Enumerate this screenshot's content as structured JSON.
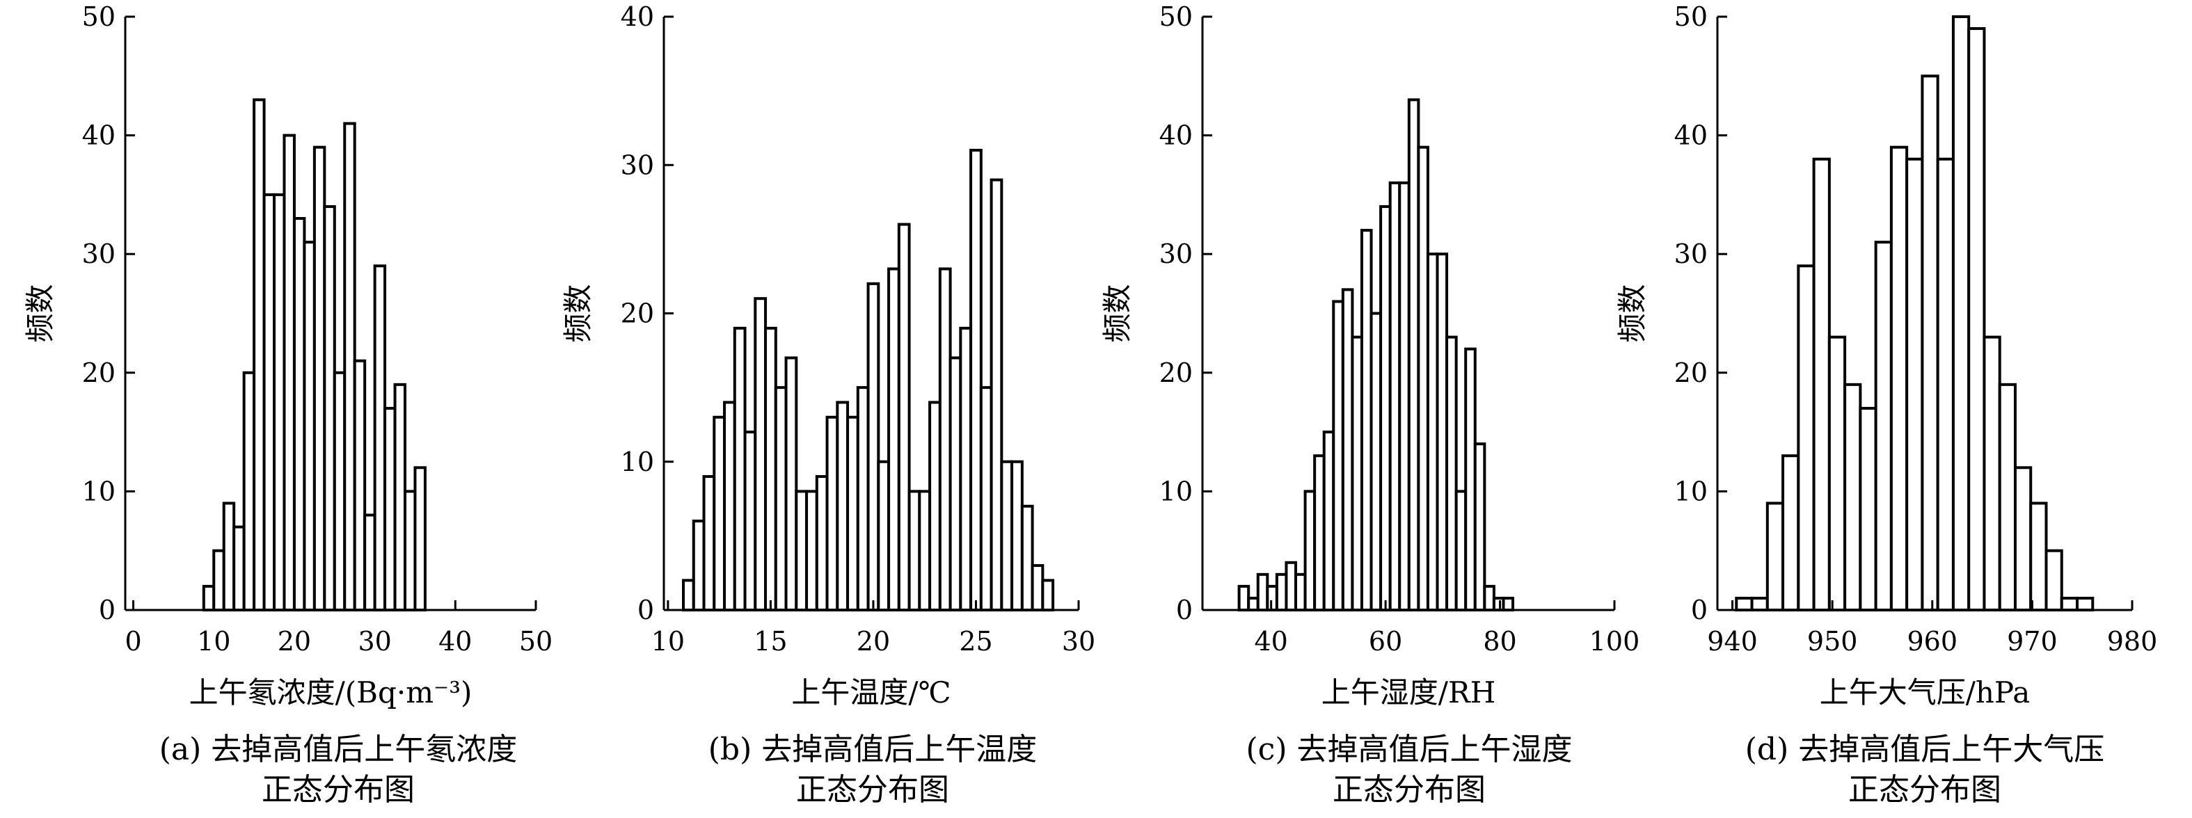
{
  "ylabel_all": "频数",
  "chart_data": [
    {
      "type": "bar",
      "title": "",
      "caption": [
        "(a) 去掉高值后上午氡浓度",
        "正态分布图"
      ],
      "xlabel": "上午氡浓度/(Bq·m⁻³)",
      "ylabel": "频数",
      "xlim": [
        -1,
        50
      ],
      "ylim": [
        0,
        50
      ],
      "xticks": [
        0,
        10,
        20,
        30,
        40,
        50
      ],
      "yticks": [
        0,
        10,
        20,
        30,
        40,
        50
      ],
      "bin_width": 1.25,
      "bin_start": 8.75,
      "values": [
        2,
        5,
        9,
        7,
        20,
        43,
        35,
        35,
        40,
        33,
        31,
        39,
        34,
        20,
        41,
        21,
        8,
        29,
        17,
        19,
        10,
        12
      ]
    },
    {
      "type": "bar",
      "title": "",
      "caption": [
        "(b) 去掉高值后上午温度",
        "正态分布图"
      ],
      "xlabel": "上午温度/℃",
      "ylabel": "频数",
      "xlim": [
        9.8,
        30
      ],
      "ylim": [
        0,
        40
      ],
      "xticks": [
        10,
        15,
        20,
        25,
        30
      ],
      "yticks": [
        0,
        10,
        20,
        30,
        40
      ],
      "bin_width": 0.5,
      "bin_start": 10.75,
      "values": [
        2,
        6,
        9,
        13,
        14,
        19,
        12,
        21,
        19,
        15,
        17,
        8,
        8,
        9,
        13,
        14,
        13,
        15,
        22,
        10,
        23,
        26,
        8,
        8,
        14,
        23,
        17,
        19,
        31,
        15,
        29,
        10,
        10,
        7,
        3,
        2
      ]
    },
    {
      "type": "bar",
      "title": "",
      "caption": [
        "(c) 去掉高值后上午湿度",
        "正态分布图"
      ],
      "xlabel": "上午湿度/RH",
      "ylabel": "频数",
      "xlim": [
        28,
        100
      ],
      "ylim": [
        0,
        50
      ],
      "xticks": [
        40,
        60,
        80,
        100
      ],
      "yticks": [
        0,
        10,
        20,
        30,
        40,
        50
      ],
      "bin_width": 1.65,
      "bin_start": 34.4,
      "values": [
        2,
        1,
        3,
        2,
        3,
        4,
        3,
        10,
        13,
        15,
        26,
        27,
        23,
        32,
        25,
        34,
        36,
        36,
        43,
        39,
        30,
        30,
        23,
        10,
        22,
        14,
        2,
        1,
        1
      ]
    },
    {
      "type": "bar",
      "title": "",
      "caption": [
        "(d) 去掉高值后上午大气压",
        "正态分布图"
      ],
      "xlabel": "上午大气压/hPa",
      "ylabel": "频数",
      "xlim": [
        938.5,
        980
      ],
      "ylim": [
        0,
        50
      ],
      "xticks": [
        940,
        950,
        960,
        970,
        980
      ],
      "yticks": [
        0,
        10,
        20,
        30,
        40,
        50
      ],
      "bin_width": 1.55,
      "bin_start": 940.4,
      "values": [
        1,
        1,
        9,
        13,
        29,
        38,
        23,
        19,
        17,
        31,
        39,
        38,
        45,
        38,
        50,
        49,
        23,
        19,
        12,
        9,
        5,
        1,
        1
      ]
    }
  ]
}
